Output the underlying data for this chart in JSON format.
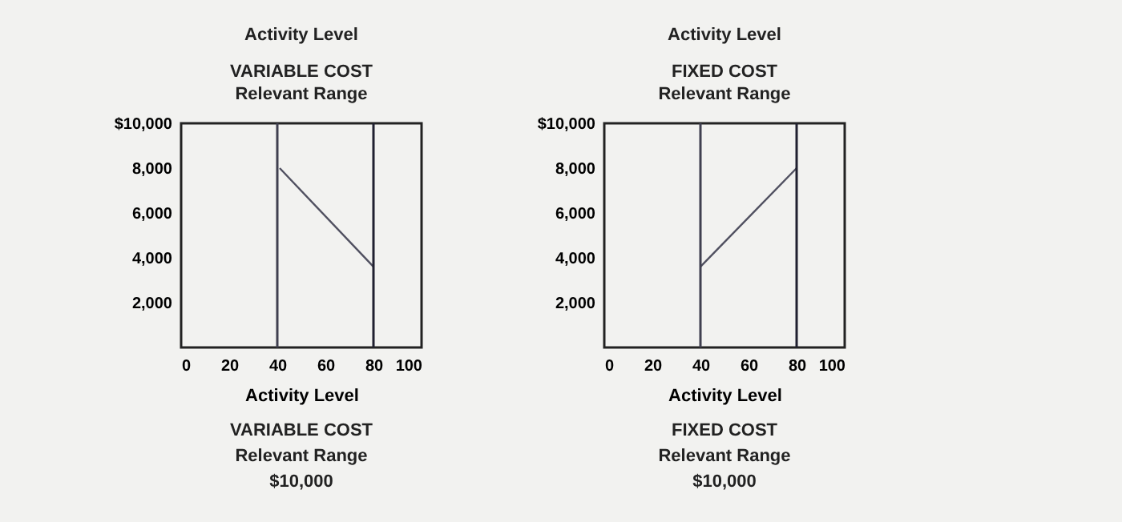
{
  "chart_data": [
    {
      "type": "line",
      "title": "VARIABLE COST",
      "subtitle": "Relevant Range",
      "xlabel": "Activity Level",
      "x": [
        41,
        80
      ],
      "values": [
        8000,
        3600
      ],
      "color": "#505060",
      "xlim": [
        0,
        100
      ],
      "xticks": [
        0,
        20,
        40,
        60,
        80,
        100
      ],
      "ylim": [
        0,
        10000
      ],
      "yticks": [
        {
          "value": 2000,
          "label": "2,000"
        },
        {
          "value": 4000,
          "label": "4,000"
        },
        {
          "value": 6000,
          "label": "6,000"
        },
        {
          "value": 8000,
          "label": "8,000"
        },
        {
          "value": 10000,
          "label": "$10,000"
        }
      ],
      "grid": false,
      "ref_lines": [
        {
          "axis": "x",
          "value": 40,
          "color": "#404050"
        },
        {
          "axis": "x",
          "value": 80,
          "color": "#202030"
        }
      ],
      "annotations": [
        "Activity Level",
        "VARIABLE COST",
        "Relevant Range",
        "$10,000"
      ]
    },
    {
      "type": "line",
      "title": "FIXED COST",
      "subtitle": "Relevant Range",
      "xlabel": "Activity Level",
      "x": [
        40,
        80
      ],
      "values": [
        3600,
        8000
      ],
      "color": "#505060",
      "xlim": [
        0,
        100
      ],
      "xticks": [
        0,
        20,
        40,
        60,
        80,
        100
      ],
      "ylim": [
        0,
        10000
      ],
      "yticks": [
        {
          "value": 2000,
          "label": "2,000"
        },
        {
          "value": 4000,
          "label": "4,000"
        },
        {
          "value": 6000,
          "label": "6,000"
        },
        {
          "value": 8000,
          "label": "8,000"
        },
        {
          "value": 10000,
          "label": "$10,000"
        }
      ],
      "grid": false,
      "ref_lines": [
        {
          "axis": "x",
          "value": 40,
          "color": "#404050"
        },
        {
          "axis": "x",
          "value": 80,
          "color": "#202030"
        }
      ],
      "annotations": [
        "Activity Level",
        "FIXED COST",
        "Relevant Range",
        "$10,000"
      ]
    }
  ]
}
